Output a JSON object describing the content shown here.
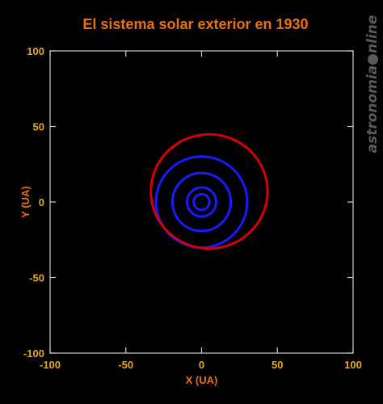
{
  "chart_data": {
    "type": "line",
    "title": "El sistema solar exterior en 1930",
    "xlabel": "X (UA)",
    "ylabel": "Y (UA)",
    "xlim": [
      -100,
      100
    ],
    "ylim": [
      -100,
      100
    ],
    "xticks": [
      -100,
      -50,
      0,
      50,
      100
    ],
    "yticks": [
      -100,
      -50,
      0,
      50,
      100
    ],
    "grid": false,
    "series": [
      {
        "cx": 0,
        "cy": 0,
        "rx": 5.2,
        "ry": 5.2,
        "color": "#1a1aff"
      },
      {
        "cx": 0,
        "cy": 0,
        "rx": 9.6,
        "ry": 9.6,
        "color": "#1a1aff"
      },
      {
        "cx": 0,
        "cy": 0,
        "rx": 19.2,
        "ry": 19.2,
        "color": "#1a1aff"
      },
      {
        "cx": 0,
        "cy": 0,
        "rx": 30.1,
        "ry": 30.1,
        "color": "#1a1aff"
      },
      {
        "cx": 5,
        "cy": 7,
        "rx": 38.5,
        "ry": 37.8,
        "color": "#d40000"
      }
    ]
  },
  "watermark": "astronomia●nline",
  "colors": {
    "background": "#000000",
    "title": "#e8720c",
    "ticks": "#e8a81a",
    "axis_labels": "#e8720c",
    "frame": "#cccccc",
    "watermark": "#5a5a5a"
  }
}
